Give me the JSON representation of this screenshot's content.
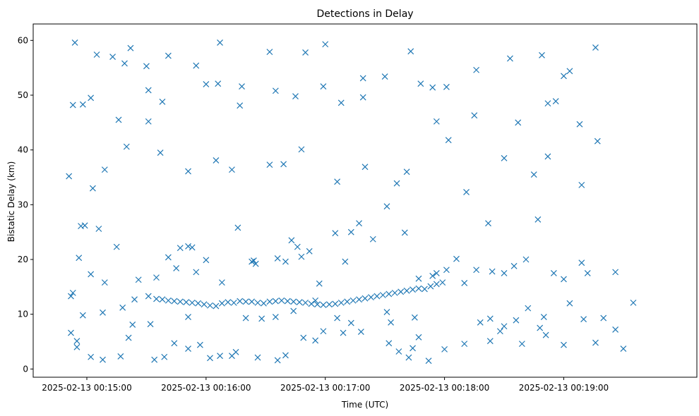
{
  "chart_data": {
    "type": "scatter",
    "title": "Detections in Delay",
    "xlabel": "Time (UTC)",
    "ylabel": "Bistatic Delay (km)",
    "marker": "x",
    "color": "#1f77b4",
    "xlim_seconds_after_00_14_00": [
      33,
      367
    ],
    "ylim": [
      -1.5,
      63
    ],
    "x_ticks": [
      {
        "seconds": 60,
        "label": "2025-02-13 00:15:00"
      },
      {
        "seconds": 120,
        "label": "2025-02-13 00:16:00"
      },
      {
        "seconds": 180,
        "label": "2025-02-13 00:17:00"
      },
      {
        "seconds": 240,
        "label": "2025-02-13 00:18:00"
      },
      {
        "seconds": 300,
        "label": "2025-02-13 00:19:00"
      }
    ],
    "y_ticks": [
      0,
      10,
      20,
      30,
      40,
      50,
      60
    ],
    "grid": false,
    "points": [
      [
        54,
        59.6
      ],
      [
        65,
        57.4
      ],
      [
        79,
        55.8
      ],
      [
        82,
        58.6
      ],
      [
        90,
        55.3
      ],
      [
        101,
        57.2
      ],
      [
        120,
        52
      ],
      [
        127,
        59.6
      ],
      [
        138,
        51.6
      ],
      [
        152,
        57.9
      ],
      [
        170,
        57.8
      ],
      [
        180,
        59.3
      ],
      [
        199,
        53.1
      ],
      [
        210,
        53.4
      ],
      [
        223,
        58
      ],
      [
        241,
        51.5
      ],
      [
        256,
        54.6
      ],
      [
        273,
        56.7
      ],
      [
        289,
        57.3
      ],
      [
        303,
        54.4
      ],
      [
        316,
        58.7
      ],
      [
        53,
        48.2
      ],
      [
        58,
        48.3
      ],
      [
        62,
        49.5
      ],
      [
        73,
        57
      ],
      [
        91,
        50.9
      ],
      [
        98,
        48.8
      ],
      [
        115,
        55.4
      ],
      [
        126,
        52.1
      ],
      [
        137,
        48.1
      ],
      [
        155,
        50.8
      ],
      [
        165,
        49.8
      ],
      [
        179,
        51.6
      ],
      [
        188,
        48.6
      ],
      [
        199,
        49.6
      ],
      [
        228,
        52.1
      ],
      [
        234,
        51.4
      ],
      [
        255,
        46.3
      ],
      [
        277,
        45
      ],
      [
        292,
        48.5
      ],
      [
        296,
        48.9
      ],
      [
        300,
        53.5
      ],
      [
        308,
        44.7
      ],
      [
        51,
        35.2
      ],
      [
        57,
        26.1
      ],
      [
        59,
        26.2
      ],
      [
        63,
        33
      ],
      [
        69,
        36.4
      ],
      [
        76,
        45.5
      ],
      [
        80,
        40.6
      ],
      [
        91,
        45.2
      ],
      [
        97,
        39.5
      ],
      [
        111,
        36.1
      ],
      [
        125,
        38.1
      ],
      [
        133,
        36.4
      ],
      [
        152,
        37.3
      ],
      [
        159,
        37.4
      ],
      [
        168,
        40.1
      ],
      [
        186,
        34.2
      ],
      [
        200,
        36.9
      ],
      [
        216,
        33.9
      ],
      [
        221,
        36
      ],
      [
        236,
        45.2
      ],
      [
        242,
        41.8
      ],
      [
        251,
        32.3
      ],
      [
        270,
        38.5
      ],
      [
        285,
        35.5
      ],
      [
        292,
        38.8
      ],
      [
        309,
        33.6
      ],
      [
        317,
        41.6
      ],
      [
        52,
        13.3
      ],
      [
        53,
        13.9
      ],
      [
        56,
        20.3
      ],
      [
        58,
        9.8
      ],
      [
        62,
        17.3
      ],
      [
        66,
        25.6
      ],
      [
        69,
        15.8
      ],
      [
        75,
        22.3
      ],
      [
        78,
        11.2
      ],
      [
        83,
        8.1
      ],
      [
        86,
        16.3
      ],
      [
        91,
        13.3
      ],
      [
        95,
        16.7
      ],
      [
        101,
        20.4
      ],
      [
        105,
        18.4
      ],
      [
        107,
        22.1
      ],
      [
        111,
        22.4
      ],
      [
        113,
        22.2
      ],
      [
        115,
        17.7
      ],
      [
        120,
        19.9
      ],
      [
        128,
        15.8
      ],
      [
        136,
        25.8
      ],
      [
        143,
        19.6
      ],
      [
        144,
        19.8
      ],
      [
        145,
        19.2
      ],
      [
        156,
        20.2
      ],
      [
        160,
        19.6
      ],
      [
        163,
        23.5
      ],
      [
        166,
        22.3
      ],
      [
        168,
        20.5
      ],
      [
        172,
        21.5
      ],
      [
        177,
        15.6
      ],
      [
        185,
        24.8
      ],
      [
        190,
        19.6
      ],
      [
        193,
        25
      ],
      [
        197,
        26.6
      ],
      [
        204,
        23.7
      ],
      [
        211,
        29.7
      ],
      [
        220,
        24.9
      ],
      [
        227,
        16.5
      ],
      [
        234,
        17
      ],
      [
        236,
        17.5
      ],
      [
        241,
        18.1
      ],
      [
        246,
        20.1
      ],
      [
        250,
        15.7
      ],
      [
        256,
        18.1
      ],
      [
        262,
        26.6
      ],
      [
        264,
        17.8
      ],
      [
        270,
        17.5
      ],
      [
        275,
        18.8
      ],
      [
        281,
        20
      ],
      [
        287,
        27.3
      ],
      [
        295,
        17.5
      ],
      [
        300,
        16.4
      ],
      [
        303,
        12
      ],
      [
        309,
        19.4
      ],
      [
        312,
        17.5
      ],
      [
        326,
        17.7
      ],
      [
        52,
        6.6
      ],
      [
        55,
        4
      ],
      [
        62,
        2.2
      ],
      [
        68,
        1.7
      ],
      [
        77,
        2.3
      ],
      [
        81,
        5.7
      ],
      [
        94,
        1.7
      ],
      [
        99,
        2.2
      ],
      [
        104,
        4.7
      ],
      [
        111,
        3.7
      ],
      [
        117,
        4.4
      ],
      [
        122,
        2
      ],
      [
        127,
        2.4
      ],
      [
        133,
        2.4
      ],
      [
        135,
        3.1
      ],
      [
        146,
        2.1
      ],
      [
        156,
        1.6
      ],
      [
        160,
        2.5
      ],
      [
        169,
        5.7
      ],
      [
        175,
        5.2
      ],
      [
        179,
        6.9
      ],
      [
        189,
        6.6
      ],
      [
        193,
        8.4
      ],
      [
        198,
        6.8
      ],
      [
        212,
        4.7
      ],
      [
        217,
        3.2
      ],
      [
        222,
        2.1
      ],
      [
        224,
        3.8
      ],
      [
        227,
        5.8
      ],
      [
        232,
        1.5
      ],
      [
        240,
        3.6
      ],
      [
        250,
        4.6
      ],
      [
        263,
        5.1
      ],
      [
        268,
        6.9
      ],
      [
        276,
        8.9
      ],
      [
        279,
        4.6
      ],
      [
        288,
        7.5
      ],
      [
        291,
        6.2
      ],
      [
        300,
        4.4
      ],
      [
        316,
        4.8
      ],
      [
        326,
        7.2
      ],
      [
        330,
        3.7
      ],
      [
        335,
        12.1
      ],
      [
        95,
        12.8
      ],
      [
        98,
        12.7
      ],
      [
        101,
        12.5
      ],
      [
        104,
        12.4
      ],
      [
        107,
        12.3
      ],
      [
        110,
        12.2
      ],
      [
        113,
        12.1
      ],
      [
        116,
        12
      ],
      [
        119,
        11.8
      ],
      [
        122,
        11.6
      ],
      [
        125,
        11.5
      ],
      [
        128,
        12
      ],
      [
        131,
        12.2
      ],
      [
        134,
        12.1
      ],
      [
        137,
        12.4
      ],
      [
        140,
        12.3
      ],
      [
        143,
        12.3
      ],
      [
        146,
        12.1
      ],
      [
        149,
        12
      ],
      [
        152,
        12.3
      ],
      [
        155,
        12.4
      ],
      [
        158,
        12.5
      ],
      [
        161,
        12.4
      ],
      [
        164,
        12.3
      ],
      [
        167,
        12.2
      ],
      [
        170,
        12.1
      ],
      [
        173,
        11.9
      ],
      [
        176,
        11.8
      ],
      [
        179,
        11.7
      ],
      [
        182,
        11.8
      ],
      [
        185,
        11.9
      ],
      [
        188,
        12.1
      ],
      [
        191,
        12.3
      ],
      [
        194,
        12.5
      ],
      [
        197,
        12.7
      ],
      [
        200,
        12.9
      ],
      [
        203,
        13.1
      ],
      [
        206,
        13.3
      ],
      [
        209,
        13.5
      ],
      [
        212,
        13.7
      ],
      [
        215,
        13.9
      ],
      [
        218,
        14.1
      ],
      [
        221,
        14.3
      ],
      [
        224,
        14.5
      ],
      [
        227,
        14.7
      ],
      [
        230,
        14.6
      ],
      [
        233,
        15.1
      ],
      [
        236,
        15.5
      ],
      [
        239,
        15.8
      ],
      [
        55,
        5.1
      ],
      [
        68,
        10.3
      ],
      [
        84,
        12.7
      ],
      [
        92,
        8.2
      ],
      [
        111,
        9.5
      ],
      [
        140,
        9.3
      ],
      [
        148,
        9.2
      ],
      [
        155,
        9.5
      ],
      [
        164,
        10.6
      ],
      [
        175,
        12.5
      ],
      [
        186,
        9.3
      ],
      [
        211,
        10.4
      ],
      [
        213,
        8.5
      ],
      [
        225,
        9.4
      ],
      [
        258,
        8.5
      ],
      [
        263,
        9.2
      ],
      [
        270,
        7.8
      ],
      [
        282,
        11.1
      ],
      [
        290,
        9.5
      ],
      [
        310,
        9.1
      ],
      [
        320,
        9.3
      ]
    ]
  }
}
